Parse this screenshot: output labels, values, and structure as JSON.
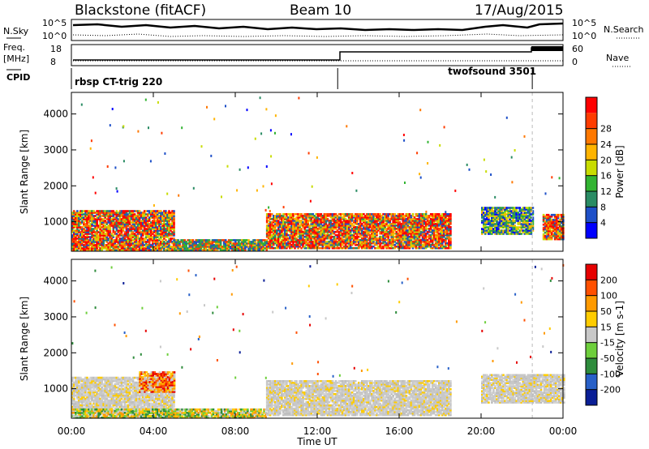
{
  "header": {
    "station": "Blackstone (fitACF)",
    "beam": "Beam 10",
    "date": "17/Aug/2015"
  },
  "summary": {
    "nsky_label": "N.Sky",
    "nsearch_label": "N.Search",
    "freq_label": "Freq.",
    "freq_unit": "[MHz]",
    "nave_label": "Nave",
    "cpid_label": "CPID",
    "left_ticks_top": [
      "10^5",
      "10^0"
    ],
    "right_ticks_top": [
      "10^5",
      "10^0"
    ],
    "freq_ticks": [
      "18",
      "8"
    ],
    "nave_ticks": [
      "60",
      "0"
    ],
    "cpid_segments": [
      {
        "label": "rbsp CT-trig 220",
        "start_hour": 0.0,
        "end_hour": 13.0
      },
      {
        "label": "twofsound 3501",
        "start_hour": 13.0,
        "end_hour": 22.5
      }
    ]
  },
  "chart_data": [
    {
      "type": "heatmap",
      "title": "Power",
      "ylabel": "Slant Range [km]",
      "xlabel": "Time UT",
      "x_ticks": [
        "00:00",
        "04:00",
        "08:00",
        "12:00",
        "16:00",
        "20:00",
        "00:00"
      ],
      "y_ticks": [
        "1000",
        "2000",
        "3000",
        "4000"
      ],
      "ylim": [
        180,
        4600
      ],
      "xlim_hours": [
        0,
        24
      ],
      "colorbar": {
        "label": "Power [dB]",
        "ticks": [
          "4",
          "8",
          "12",
          "16",
          "20",
          "24",
          "28"
        ],
        "colors": [
          "#0000ff",
          "#1e50c8",
          "#2a8c64",
          "#32b432",
          "#c8dc00",
          "#ffb400",
          "#ff7800",
          "#ff3c00",
          "#ff0000"
        ]
      },
      "echo_regions": [
        {
          "t0": 0.0,
          "t1": 5.0,
          "r0": 200,
          "r1": 1300,
          "dominant": "red"
        },
        {
          "t0": 5.0,
          "t1": 9.5,
          "r0": 200,
          "r1": 500,
          "dominant": "green"
        },
        {
          "t0": 9.5,
          "t1": 18.5,
          "r0": 250,
          "r1": 1200,
          "dominant": "red"
        },
        {
          "t0": 20.0,
          "t1": 22.5,
          "r0": 650,
          "r1": 1400,
          "dominant": "blue"
        },
        {
          "t0": 23.0,
          "t1": 24.0,
          "r0": 500,
          "r1": 1200,
          "dominant": "red"
        }
      ]
    },
    {
      "type": "heatmap",
      "title": "Velocity",
      "ylabel": "Slant Range [km]",
      "xlabel": "Time UT",
      "x_ticks": [
        "00:00",
        "04:00",
        "08:00",
        "12:00",
        "16:00",
        "20:00",
        "00:00"
      ],
      "y_ticks": [
        "1000",
        "2000",
        "3000",
        "4000"
      ],
      "ylim": [
        180,
        4600
      ],
      "xlim_hours": [
        0,
        24
      ],
      "colorbar": {
        "label": "Velocity [m s-1]",
        "ticks": [
          "200",
          "100",
          "50",
          "15",
          "-15",
          "-50",
          "-100",
          "-200"
        ],
        "colors": [
          "#0a1e96",
          "#2860c8",
          "#2e8c3c",
          "#6ecf3c",
          "#c8c8c8",
          "#ffcc00",
          "#ff9a00",
          "#ff5000",
          "#e60000"
        ]
      },
      "echo_regions": [
        {
          "t0": 0.0,
          "t1": 5.0,
          "r0": 300,
          "r1": 1300,
          "dominant": "gray"
        },
        {
          "t0": 3.3,
          "t1": 5.0,
          "r0": 900,
          "r1": 1450,
          "dominant": "orange"
        },
        {
          "t0": 0.0,
          "t1": 9.5,
          "r0": 180,
          "r1": 450,
          "dominant": "green-yellow"
        },
        {
          "t0": 9.5,
          "t1": 18.5,
          "r0": 250,
          "r1": 1200,
          "dominant": "gray"
        },
        {
          "t0": 20.0,
          "t1": 24.0,
          "r0": 600,
          "r1": 1400,
          "dominant": "gray"
        }
      ]
    }
  ]
}
